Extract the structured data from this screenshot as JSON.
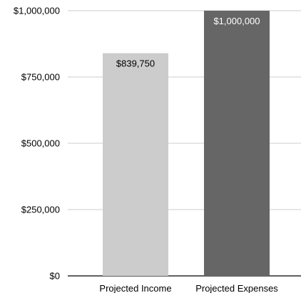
{
  "chart_data": {
    "type": "bar",
    "title": "",
    "xlabel": "",
    "ylabel": "",
    "categories": [
      "Projected Income",
      "Projected Expenses"
    ],
    "values": [
      839750,
      1000000
    ],
    "data_labels": [
      "$839,750",
      "$1,000,000"
    ],
    "bar_colors": [
      "#cccccc",
      "#666666"
    ],
    "data_label_colors": [
      "#000000",
      "#ffffff"
    ],
    "ylim": [
      0,
      1000000
    ],
    "yticks": [
      0,
      250000,
      500000,
      750000,
      1000000
    ],
    "ytick_labels": [
      "$0",
      "$250,000",
      "$500,000",
      "$750,000",
      "$1,000,000"
    ],
    "grid": true,
    "grid_color": "#cccccc",
    "axis_color": "#000000"
  }
}
